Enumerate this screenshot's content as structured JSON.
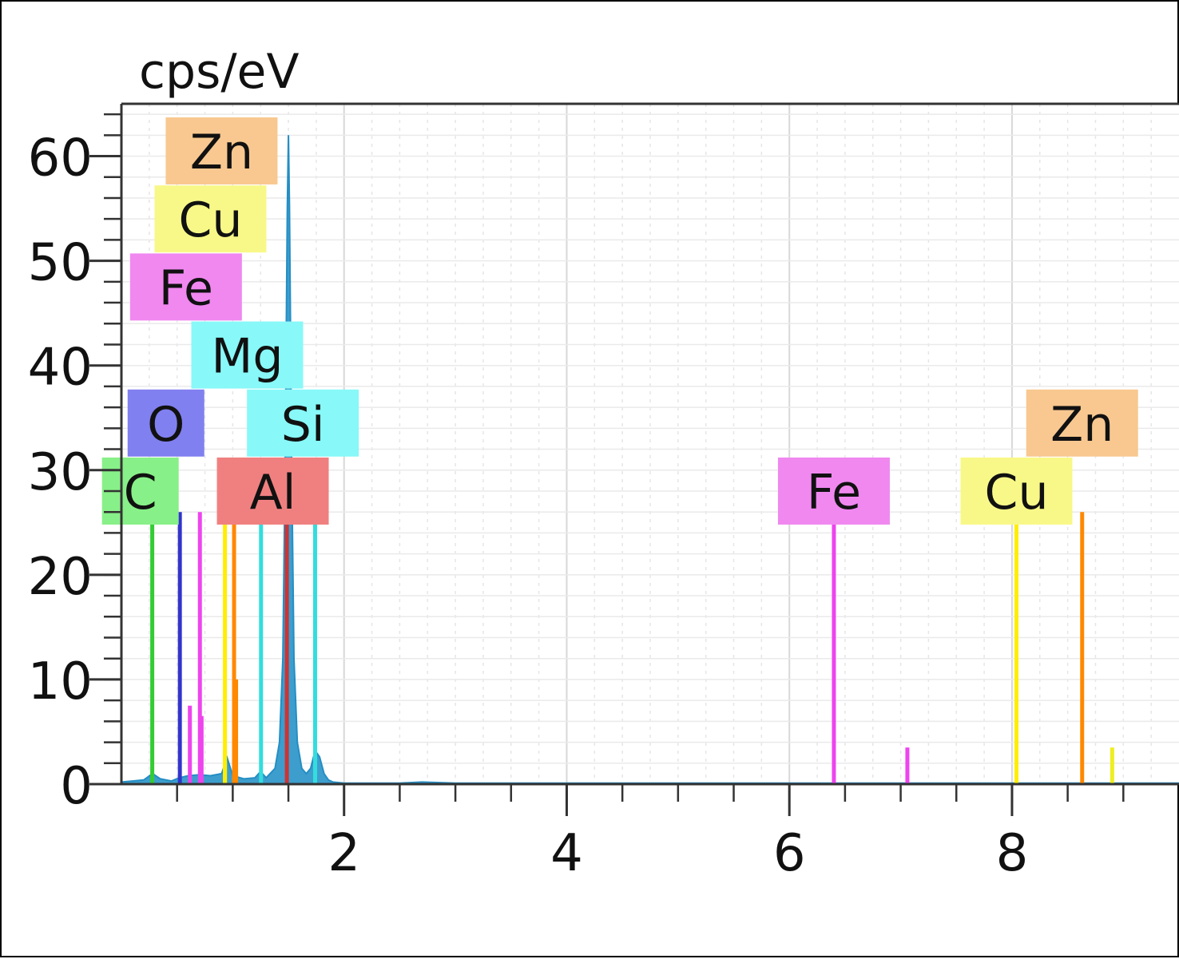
{
  "chart_data": {
    "type": "bar",
    "title": "",
    "ylabel": "cps/eV",
    "xlabel": "",
    "xlim": [
      0,
      9.5
    ],
    "ylim": [
      0,
      65
    ],
    "xticks": [
      2,
      4,
      6,
      8
    ],
    "yticks": [
      0,
      10,
      20,
      30,
      40,
      50,
      60
    ],
    "grid": true,
    "spectrum": {
      "name": "",
      "color": "#3399cc",
      "points": [
        [
          0.0,
          0.2
        ],
        [
          0.1,
          0.3
        ],
        [
          0.2,
          0.4
        ],
        [
          0.28,
          1.0
        ],
        [
          0.35,
          0.5
        ],
        [
          0.45,
          0.3
        ],
        [
          0.52,
          0.6
        ],
        [
          0.6,
          0.8
        ],
        [
          0.7,
          0.9
        ],
        [
          0.8,
          0.8
        ],
        [
          0.9,
          1.0
        ],
        [
          0.95,
          2.5
        ],
        [
          1.0,
          0.8
        ],
        [
          1.1,
          0.5
        ],
        [
          1.2,
          0.6
        ],
        [
          1.25,
          1.2
        ],
        [
          1.3,
          0.6
        ],
        [
          1.38,
          1.5
        ],
        [
          1.42,
          4.0
        ],
        [
          1.45,
          12.0
        ],
        [
          1.47,
          30.0
        ],
        [
          1.49,
          55.0
        ],
        [
          1.5,
          62.0
        ],
        [
          1.51,
          55.0
        ],
        [
          1.53,
          30.0
        ],
        [
          1.55,
          12.0
        ],
        [
          1.58,
          4.0
        ],
        [
          1.62,
          1.5
        ],
        [
          1.66,
          1.0
        ],
        [
          1.7,
          1.5
        ],
        [
          1.74,
          3.2
        ],
        [
          1.78,
          2.6
        ],
        [
          1.82,
          1.0
        ],
        [
          1.86,
          0.4
        ],
        [
          1.9,
          0.2
        ],
        [
          2.0,
          0.1
        ],
        [
          2.5,
          0.1
        ],
        [
          2.7,
          0.2
        ],
        [
          3.0,
          0.1
        ],
        [
          9.5,
          0.1
        ]
      ]
    },
    "element_lines": [
      {
        "element": "C",
        "energy": 0.277,
        "height": 26,
        "color": "#33cc33"
      },
      {
        "element": "O",
        "energy": 0.525,
        "height": 26,
        "color": "#3333cc"
      },
      {
        "element": "Fe",
        "energy": 0.615,
        "height": 7.5,
        "color": "#ee44ee"
      },
      {
        "element": "Fe",
        "energy": 0.705,
        "height": 26,
        "color": "#ee44ee"
      },
      {
        "element": "Fe",
        "energy": 0.72,
        "height": 6.5,
        "color": "#ee44ee"
      },
      {
        "element": "Cu",
        "energy": 0.93,
        "height": 3.2,
        "color": "#eeee22"
      },
      {
        "element": "Cu",
        "energy": 0.93,
        "height": 26,
        "color": "#ffee00"
      },
      {
        "element": "Zn",
        "energy": 1.012,
        "height": 26,
        "color": "#ff8800"
      },
      {
        "element": "Zn",
        "energy": 1.03,
        "height": 10,
        "color": "#ff8800"
      },
      {
        "element": "Mg",
        "energy": 1.254,
        "height": 26,
        "color": "#33dddd"
      },
      {
        "element": "Al",
        "energy": 1.486,
        "height": 26,
        "color": "#cc3333"
      },
      {
        "element": "Si",
        "energy": 1.74,
        "height": 26,
        "color": "#33dddd"
      },
      {
        "element": "Fe",
        "energy": 6.4,
        "height": 26,
        "color": "#ee44ee"
      },
      {
        "element": "Fe",
        "energy": 7.06,
        "height": 3.5,
        "color": "#ee44ee"
      },
      {
        "element": "Cu",
        "energy": 8.04,
        "height": 26,
        "color": "#ffee00"
      },
      {
        "element": "Zn",
        "energy": 8.63,
        "height": 26,
        "color": "#ff8800"
      },
      {
        "element": "Zn",
        "energy": 8.9,
        "height": 3.5,
        "color": "#eeee22"
      }
    ],
    "labels": [
      {
        "text": "Zn",
        "energy": 0.9,
        "y": 60.5,
        "bg": "#f8c890"
      },
      {
        "text": "Cu",
        "energy": 0.8,
        "y": 54.0,
        "bg": "#f8f888"
      },
      {
        "text": "Fe",
        "energy": 0.58,
        "y": 47.5,
        "bg": "#f088f0"
      },
      {
        "text": "Mg",
        "energy": 1.13,
        "y": 41.0,
        "bg": "#88f8f8"
      },
      {
        "text": "O",
        "energy": 0.4,
        "y": 34.5,
        "bg": "#8080f0"
      },
      {
        "text": "Si",
        "energy": 1.63,
        "y": 34.5,
        "bg": "#88f8f8"
      },
      {
        "text": "C",
        "energy": 0.17,
        "y": 28.0,
        "bg": "#88f088"
      },
      {
        "text": "Al",
        "energy": 1.36,
        "y": 28.0,
        "bg": "#f08080"
      },
      {
        "text": "Fe",
        "energy": 6.4,
        "y": 28.0,
        "bg": "#f088f0"
      },
      {
        "text": "Cu",
        "energy": 8.04,
        "y": 28.0,
        "bg": "#f8f888"
      },
      {
        "text": "Zn",
        "energy": 8.63,
        "y": 34.5,
        "bg": "#f8c890"
      }
    ]
  }
}
